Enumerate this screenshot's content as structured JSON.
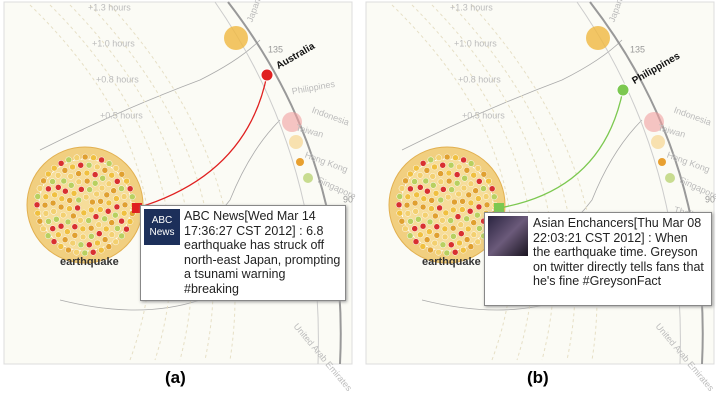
{
  "panels": [
    {
      "caption": "(a)",
      "cluster_label": "earthquake",
      "highlight": "Australia",
      "hour_labels": [
        "+1.3 hours",
        "+1.0 hours",
        "+0.8 hours",
        "+0.5 hours"
      ],
      "countries": [
        "Japan",
        "Philippines",
        "Taiwan",
        "Indonesia",
        "Hong Kong",
        "Singapore",
        "Thailand",
        "United Arab Emirates"
      ],
      "axis_labels": [
        "135",
        "90"
      ],
      "tooltip": {
        "logo": [
          "ABC",
          "News"
        ],
        "text": "ABC News[Wed Mar 14 17:36:27 CST 2012] : 6.8 earthquake has struck off north-east Japan, prompting a tsunami warning #breaking"
      }
    },
    {
      "caption": "(b)",
      "cluster_label": "earthquake",
      "highlight": "Philippines",
      "hour_labels": [
        "+1.3 hours",
        "+1.0 hours",
        "+0.8 hours",
        "+0.5 hours"
      ],
      "countries": [
        "Japan",
        "Taiwan",
        "Indonesia",
        "Hong Kong",
        "Singapore",
        "Thailand",
        "United Arab Emirates"
      ],
      "axis_labels": [
        "135",
        "90"
      ],
      "tooltip": {
        "text": "Asian Enchancers[Thu Mar 08 22:03:21 CST 2012] : When the earthquake time. Greyson on twitter directly tells fans that he's fine #GreysonFact"
      }
    }
  ]
}
